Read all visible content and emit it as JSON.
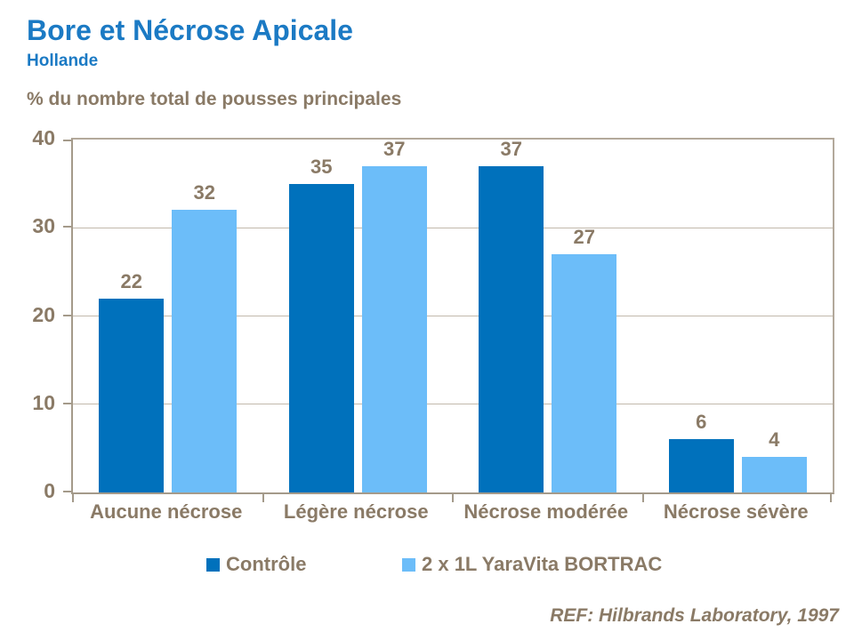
{
  "header": {
    "title": "Bore et Nécrose Apicale",
    "subtitle": "Hollande"
  },
  "chart_data": {
    "type": "bar",
    "title": "Bore et Nécrose Apicale",
    "subtitle": "Hollande",
    "axis_note": "% du nombre total de pousses principales",
    "categories": [
      "Aucune nécrose",
      "Légère nécrose",
      "Nécrose modérée",
      "Nécrose sévère"
    ],
    "series": [
      {
        "name": "Contrôle",
        "color": "#0071BC",
        "values": [
          22,
          35,
          37,
          6
        ]
      },
      {
        "name": "2 x 1L YaraVita BORTRAC",
        "color": "#6CBDF9",
        "values": [
          32,
          37,
          27,
          4
        ]
      }
    ],
    "ylim": [
      0,
      40
    ],
    "yticks": [
      0,
      10,
      20,
      30,
      40
    ],
    "grid": "horizontal",
    "legend_position": "bottom",
    "value_labels": true
  },
  "footer": {
    "ref": "REF: Hilbrands Laboratory, 1997"
  },
  "colors": {
    "title_blue": "#1B7AC4",
    "taupe_text": "#8A7A66",
    "gridline": "#C2B9AC",
    "plot_border": "#B3A99B",
    "axis": "#A49A8A",
    "background": "#FFFFFF"
  }
}
